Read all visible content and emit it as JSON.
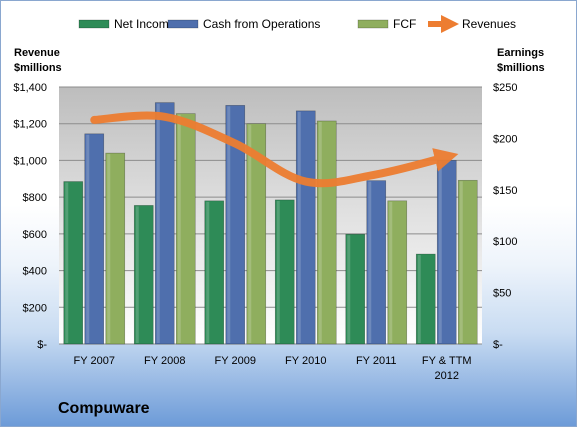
{
  "chart_data": {
    "type": "bar",
    "company": "Compuware",
    "categories": [
      {
        "l1": "FY 2007",
        "l2": ""
      },
      {
        "l1": "FY 2008",
        "l2": ""
      },
      {
        "l1": "FY 2009",
        "l2": ""
      },
      {
        "l1": "FY 2010",
        "l2": ""
      },
      {
        "l1": "FY 2011",
        "l2": ""
      },
      {
        "l1": "FY & TTM",
        "l2": "2012"
      }
    ],
    "left_axis": {
      "title_line1": "Revenue",
      "title_line2": "$millions",
      "ylim": [
        0,
        1400
      ],
      "ticks": [
        {
          "value": 0,
          "label": "$-"
        },
        {
          "value": 200,
          "label": "$200"
        },
        {
          "value": 400,
          "label": "$400"
        },
        {
          "value": 600,
          "label": "$600"
        },
        {
          "value": 800,
          "label": "$800"
        },
        {
          "value": 1000,
          "label": "$1,000"
        },
        {
          "value": 1200,
          "label": "$1,200"
        },
        {
          "value": 1400,
          "label": "$1,400"
        }
      ]
    },
    "right_axis": {
      "title_line1": "Earnings",
      "title_line2": "$millions",
      "ylim": [
        0,
        250
      ],
      "ticks": [
        {
          "value": 0,
          "label": "$-"
        },
        {
          "value": 50,
          "label": "$50"
        },
        {
          "value": 100,
          "label": "$100"
        },
        {
          "value": 150,
          "label": "$150"
        },
        {
          "value": 200,
          "label": "$200"
        },
        {
          "value": 250,
          "label": "$250"
        }
      ]
    },
    "series": [
      {
        "name": "Net Income",
        "kind": "bar",
        "axis": "left",
        "color": "#2e8b57",
        "values": [
          885,
          755,
          780,
          785,
          598,
          490
        ]
      },
      {
        "name": "Cash from Operations",
        "kind": "bar",
        "axis": "left",
        "color": "#4f6fad",
        "values": [
          1145,
          1315,
          1300,
          1270,
          890,
          1000
        ]
      },
      {
        "name": "FCF",
        "kind": "bar",
        "axis": "left",
        "color": "#8fae5e",
        "values": [
          1040,
          1255,
          1200,
          1215,
          780,
          892
        ]
      },
      {
        "name": "Revenues",
        "kind": "line",
        "axis": "right",
        "color": "#ed7d31",
        "values": [
          218,
          221,
          195,
          158,
          165,
          182
        ]
      }
    ],
    "grid": true,
    "legend_position": "top"
  }
}
